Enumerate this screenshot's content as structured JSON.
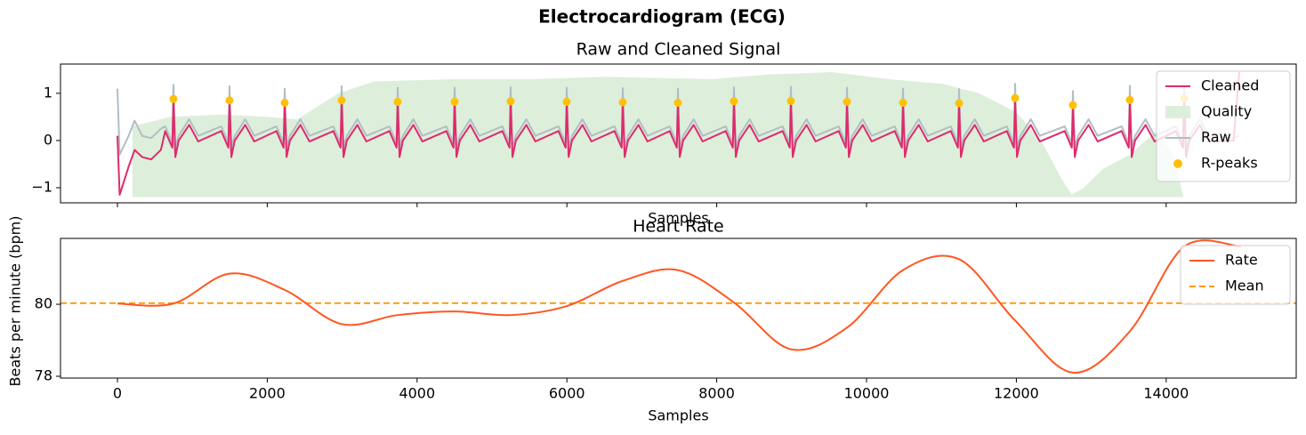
{
  "title": "Electrocardiogram (ECG)",
  "chart_data": [
    {
      "type": "line",
      "title": "Raw and Cleaned Signal",
      "xlabel": "Samples",
      "xlim": [
        -760,
        15736
      ],
      "ylim": [
        -1.32,
        1.62
      ],
      "xticks": [
        0,
        2000,
        4000,
        6000,
        8000,
        10000,
        12000,
        14000
      ],
      "xticklabels": false,
      "yticks": [
        {
          "value": -1,
          "label": "−1"
        },
        0,
        1
      ],
      "legend": "upper right",
      "x": [
        0,
        30,
        150,
        230,
        330,
        450,
        580,
        638,
        733,
        748,
        773,
        818,
        958,
        1078,
        1386,
        1481,
        1496,
        1521,
        1566,
        1706,
        1826,
        2123,
        2218,
        2233,
        2258,
        2303,
        2443,
        2563,
        2883,
        2978,
        2993,
        3018,
        3063,
        3203,
        3323,
        3631,
        3726,
        3741,
        3766,
        3811,
        3951,
        4071,
        4391,
        4486,
        4501,
        4526,
        4571,
        4711,
        4831,
        5139,
        5234,
        5249,
        5274,
        5319,
        5459,
        5579,
        5888,
        5983,
        5998,
        6023,
        6068,
        6208,
        6328,
        6636,
        6731,
        6746,
        6771,
        6816,
        6956,
        7076,
        7372,
        7467,
        7482,
        7507,
        7552,
        7692,
        7812,
        8120,
        8215,
        8230,
        8255,
        8300,
        8440,
        8560,
        8880,
        8975,
        8990,
        9015,
        9060,
        9200,
        9320,
        9629,
        9724,
        9739,
        9764,
        9809,
        9949,
        10069,
        10377,
        10472,
        10487,
        10512,
        10557,
        10697,
        10817,
        11125,
        11220,
        11235,
        11260,
        11305,
        11445,
        11565,
        11873,
        11968,
        11983,
        12008,
        12053,
        12193,
        12313,
        12645,
        12740,
        12755,
        12780,
        12825,
        12965,
        13085,
        13405,
        13500,
        13515,
        13540,
        13585,
        13725,
        13845,
        14130,
        14225,
        14240,
        14265,
        14310,
        14450,
        14570,
        14900,
        14976
      ],
      "series": [
        {
          "name": "Cleaned",
          "type": "line",
          "color": "#E02A6C",
          "values": [
            0.1,
            -1.15,
            -0.55,
            -0.2,
            -0.35,
            -0.4,
            -0.2,
            0.2,
            -0.15,
            0.88,
            -0.35,
            0,
            0.33,
            -0.02,
            0.2,
            -0.15,
            0.85,
            -0.35,
            0,
            0.33,
            -0.02,
            0.2,
            -0.15,
            0.8,
            -0.35,
            0,
            0.33,
            -0.02,
            0.2,
            -0.15,
            0.85,
            -0.35,
            0,
            0.33,
            -0.02,
            0.2,
            -0.15,
            0.82,
            -0.35,
            0,
            0.33,
            -0.02,
            0.2,
            -0.15,
            0.82,
            -0.35,
            0,
            0.33,
            -0.02,
            0.2,
            -0.15,
            0.83,
            -0.35,
            0,
            0.33,
            -0.02,
            0.2,
            -0.15,
            0.82,
            -0.35,
            0,
            0.33,
            -0.02,
            0.2,
            -0.15,
            0.81,
            -0.35,
            0,
            0.33,
            -0.02,
            0.2,
            -0.15,
            0.8,
            -0.35,
            0,
            0.33,
            -0.02,
            0.2,
            -0.15,
            0.83,
            -0.35,
            0,
            0.33,
            -0.02,
            0.2,
            -0.15,
            0.84,
            -0.35,
            0,
            0.33,
            -0.02,
            0.2,
            -0.15,
            0.82,
            -0.35,
            0,
            0.33,
            -0.02,
            0.2,
            -0.15,
            0.8,
            -0.35,
            0,
            0.33,
            -0.02,
            0.2,
            -0.15,
            0.79,
            -0.35,
            0,
            0.33,
            -0.02,
            0.2,
            -0.15,
            0.9,
            -0.35,
            0,
            0.33,
            -0.02,
            0.2,
            -0.15,
            0.75,
            -0.35,
            0,
            0.33,
            -0.02,
            0.2,
            -0.15,
            0.86,
            -0.35,
            0,
            0.33,
            -0.02,
            0.2,
            -0.15,
            0.9,
            -0.35,
            0,
            0.33,
            -0.02,
            0,
            1.45
          ]
        },
        {
          "name": "Quality",
          "type": "area",
          "color": "#DDEFDA",
          "x": [
            200,
            700,
            1400,
            2000,
            2400,
            2950,
            3420,
            4500,
            5560,
            6500,
            7930,
            8700,
            9540,
            10300,
            11020,
            11500,
            12000,
            12330,
            12600,
            12740,
            12900,
            13160,
            13515,
            13870,
            14100,
            14230
          ],
          "values": [
            0.3,
            0.5,
            0.55,
            0.5,
            0.45,
            1.0,
            1.25,
            1.3,
            1.3,
            1.35,
            1.3,
            1.4,
            1.45,
            1.3,
            1.2,
            1.0,
            0.6,
            0.0,
            -0.8,
            -1.15,
            -1.0,
            -0.6,
            -0.3,
            0.2,
            -0.3,
            -1.2
          ]
        },
        {
          "name": "Raw",
          "type": "line",
          "color": "#B0BEC5",
          "values": [
            1.1,
            -0.3,
            0.1,
            0.42,
            0.1,
            0.05,
            0.25,
            0.3,
            -0.05,
            1.18,
            -0.15,
            0.1,
            0.45,
            0.1,
            0.3,
            -0.05,
            1.15,
            -0.15,
            0.1,
            0.45,
            0.1,
            0.3,
            -0.05,
            1.1,
            -0.15,
            0.1,
            0.45,
            0.1,
            0.3,
            -0.05,
            1.15,
            -0.15,
            0.1,
            0.45,
            0.1,
            0.3,
            -0.05,
            1.12,
            -0.15,
            0.1,
            0.45,
            0.1,
            0.3,
            -0.05,
            1.12,
            -0.15,
            0.1,
            0.45,
            0.1,
            0.3,
            -0.05,
            1.13,
            -0.15,
            0.1,
            0.45,
            0.1,
            0.3,
            -0.05,
            1.12,
            -0.15,
            0.1,
            0.45,
            0.1,
            0.3,
            -0.05,
            1.11,
            -0.15,
            0.1,
            0.45,
            0.1,
            0.3,
            -0.05,
            1.1,
            -0.15,
            0.1,
            0.45,
            0.1,
            0.3,
            -0.05,
            1.13,
            -0.15,
            0.1,
            0.45,
            0.1,
            0.3,
            -0.05,
            1.14,
            -0.15,
            0.1,
            0.45,
            0.1,
            0.3,
            -0.05,
            1.12,
            -0.15,
            0.1,
            0.45,
            0.1,
            0.3,
            -0.05,
            1.1,
            -0.15,
            0.1,
            0.45,
            0.1,
            0.3,
            -0.05,
            1.09,
            -0.15,
            0.1,
            0.45,
            0.1,
            0.3,
            -0.05,
            1.2,
            -0.15,
            0.1,
            0.45,
            0.1,
            0.3,
            -0.05,
            1.05,
            -0.15,
            0.1,
            0.45,
            0.1,
            0.3,
            -0.05,
            1.16,
            -0.15,
            0.1,
            0.45,
            0.1,
            0.3,
            -0.05,
            1.2,
            -0.15,
            0.1,
            0.45,
            0.1,
            0.05,
            0.1
          ]
        },
        {
          "name": "R-peaks",
          "type": "scatter",
          "color": "#FFC107",
          "x": [
            748,
            1496,
            2233,
            2993,
            3741,
            4501,
            5249,
            5998,
            6746,
            7482,
            8230,
            8990,
            9739,
            10487,
            11235,
            11983,
            12755,
            13515,
            14240
          ],
          "values": [
            0.88,
            0.85,
            0.8,
            0.85,
            0.82,
            0.82,
            0.83,
            0.82,
            0.81,
            0.8,
            0.83,
            0.84,
            0.82,
            0.8,
            0.79,
            0.9,
            0.75,
            0.86,
            0.9
          ]
        }
      ]
    },
    {
      "type": "line",
      "title": "Heart Rate",
      "xlabel": "Samples",
      "ylabel": "Beats per minute (bpm)",
      "xlim": [
        -760,
        15736
      ],
      "ylim": [
        77.95,
        81.83
      ],
      "xticks": [
        0,
        2000,
        4000,
        6000,
        8000,
        10000,
        12000,
        14000
      ],
      "yticks": [
        78,
        80
      ],
      "legend": "upper right",
      "series": [
        {
          "name": "Rate",
          "type": "line",
          "color": "#FF5722",
          "x": [
            0,
            748,
            1496,
            2233,
            2993,
            3741,
            4501,
            5249,
            5998,
            6746,
            7482,
            8230,
            8990,
            9739,
            10487,
            11235,
            11983,
            12755,
            13515,
            14240,
            15000
          ],
          "values": [
            80.02,
            80.02,
            80.85,
            80.4,
            79.45,
            79.7,
            79.8,
            79.7,
            79.95,
            80.65,
            80.95,
            80.05,
            78.75,
            79.35,
            80.95,
            81.25,
            79.55,
            78.1,
            79.25,
            81.6,
            81.6
          ]
        },
        {
          "name": "Mean",
          "type": "hline",
          "color": "#FF9800",
          "dashed": true,
          "value": 80.03
        }
      ]
    }
  ]
}
